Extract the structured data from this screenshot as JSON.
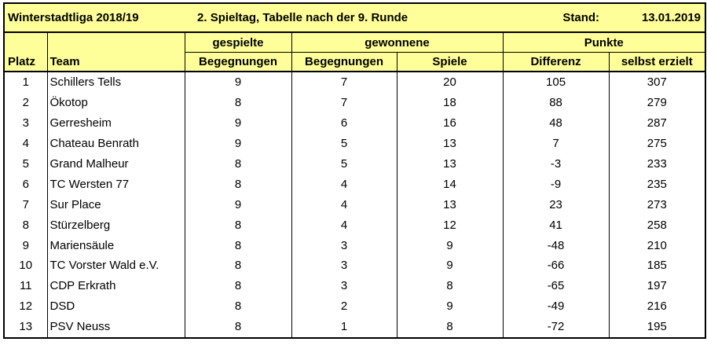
{
  "title": {
    "league": "Winterstadtliga 2018/19",
    "matchday": "2. Spieltag, Tabelle nach der 9. Runde",
    "stand_label": "Stand:",
    "stand_date": "13.01.2019"
  },
  "headers": {
    "gespielte": "gespielte",
    "gewonnene": "gewonnene",
    "punkte": "Punkte",
    "platz": "Platz",
    "team": "Team",
    "begegnungen_played": "Begegnungen",
    "begegnungen_won": "Begegnungen",
    "spiele": "Spiele",
    "differenz": "Differenz",
    "selbst_erzielt": "selbst erzielt"
  },
  "rows": [
    {
      "platz": "1",
      "team": "Schillers Tells",
      "played": "9",
      "won_matches": "7",
      "won_games": "20",
      "diff": "105",
      "scored": "307"
    },
    {
      "platz": "2",
      "team": "Ökotop",
      "played": "8",
      "won_matches": "7",
      "won_games": "18",
      "diff": "88",
      "scored": "279"
    },
    {
      "platz": "3",
      "team": "Gerresheim",
      "played": "9",
      "won_matches": "6",
      "won_games": "16",
      "diff": "48",
      "scored": "287"
    },
    {
      "platz": "4",
      "team": "Chateau Benrath",
      "played": "9",
      "won_matches": "5",
      "won_games": "13",
      "diff": "7",
      "scored": "275"
    },
    {
      "platz": "5",
      "team": "Grand Malheur",
      "played": "8",
      "won_matches": "5",
      "won_games": "13",
      "diff": "-3",
      "scored": "233"
    },
    {
      "platz": "6",
      "team": "TC Wersten 77",
      "played": "8",
      "won_matches": "4",
      "won_games": "14",
      "diff": "-9",
      "scored": "235"
    },
    {
      "platz": "7",
      "team": "Sur Place",
      "played": "9",
      "won_matches": "4",
      "won_games": "13",
      "diff": "23",
      "scored": "273"
    },
    {
      "platz": "8",
      "team": "Stürzelberg",
      "played": "8",
      "won_matches": "4",
      "won_games": "12",
      "diff": "41",
      "scored": "258"
    },
    {
      "platz": "9",
      "team": "Mariensäule",
      "played": "8",
      "won_matches": "3",
      "won_games": "9",
      "diff": "-48",
      "scored": "210"
    },
    {
      "platz": "10",
      "team": "TC Vorster Wald e.V.",
      "played": "8",
      "won_matches": "3",
      "won_games": "9",
      "diff": "-66",
      "scored": "185"
    },
    {
      "platz": "11",
      "team": "CDP Erkrath",
      "played": "8",
      "won_matches": "3",
      "won_games": "8",
      "diff": "-65",
      "scored": "197"
    },
    {
      "platz": "12",
      "team": "DSD",
      "played": "8",
      "won_matches": "2",
      "won_games": "9",
      "diff": "-49",
      "scored": "216"
    },
    {
      "platz": "13",
      "team": "PSV Neuss",
      "played": "8",
      "won_matches": "1",
      "won_games": "8",
      "diff": "-72",
      "scored": "195"
    }
  ],
  "colors": {
    "header_background": "#ffff99",
    "grid": "#000000"
  }
}
